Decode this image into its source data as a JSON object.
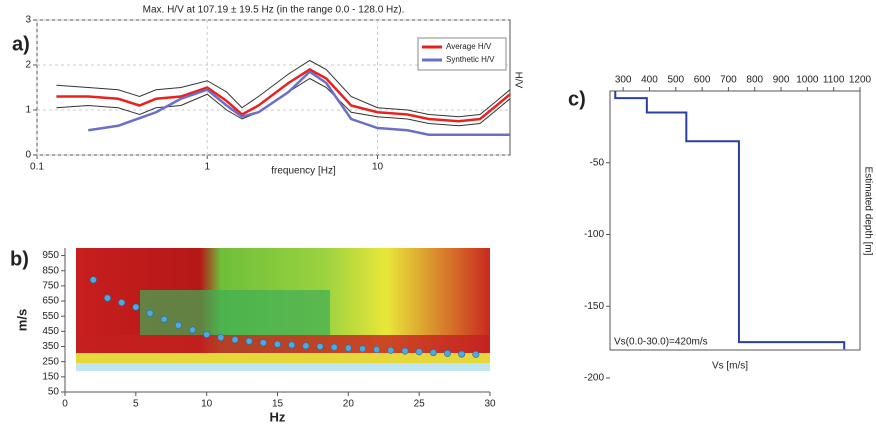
{
  "chart_data": [
    {
      "type": "line",
      "panel_label": "a)",
      "title": "Max. H/V at 107.19 ± 19.5 Hz (in the range 0.0 - 128.0 Hz).",
      "xlabel": "frequency [Hz]",
      "ylabel": "H/V",
      "xscale": "log",
      "xlim": [
        0.1,
        60
      ],
      "xticks": [
        0.1,
        1,
        10
      ],
      "ylim": [
        0,
        3
      ],
      "yticks": [
        0,
        1,
        2,
        3
      ],
      "grid": true,
      "legend": "upper right",
      "series": [
        {
          "color": "#333333",
          "x": [
            0.13,
            0.2,
            0.3,
            0.4,
            0.5,
            0.7,
            1.0,
            1.3,
            1.6,
            2.0,
            3.0,
            4.0,
            5.0,
            7.0,
            10,
            15,
            20,
            30,
            40,
            50,
            60
          ],
          "values": [
            1.55,
            1.5,
            1.45,
            1.3,
            1.45,
            1.5,
            1.65,
            1.4,
            1.05,
            1.3,
            1.8,
            2.1,
            1.9,
            1.3,
            1.05,
            1.0,
            0.9,
            0.85,
            0.9,
            1.2,
            1.45
          ]
        },
        {
          "color": "#333333",
          "x": [
            0.13,
            0.2,
            0.3,
            0.4,
            0.5,
            0.7,
            1.0,
            1.3,
            1.6,
            2.0,
            3.0,
            4.0,
            5.0,
            7.0,
            10,
            15,
            20,
            30,
            40,
            50,
            60
          ],
          "values": [
            1.05,
            1.1,
            1.05,
            0.9,
            1.05,
            1.1,
            1.35,
            1.0,
            0.8,
            0.95,
            1.4,
            1.7,
            1.5,
            0.95,
            0.85,
            0.8,
            0.7,
            0.65,
            0.7,
            1.0,
            1.25
          ]
        },
        {
          "name": "Average H/V",
          "color": "#e8231f",
          "x": [
            0.13,
            0.2,
            0.3,
            0.4,
            0.5,
            0.7,
            1.0,
            1.3,
            1.6,
            2.0,
            3.0,
            4.0,
            5.0,
            7.0,
            10,
            15,
            20,
            30,
            40,
            50,
            60
          ],
          "values": [
            1.3,
            1.3,
            1.25,
            1.1,
            1.25,
            1.3,
            1.5,
            1.2,
            0.9,
            1.1,
            1.6,
            1.9,
            1.7,
            1.1,
            0.95,
            0.9,
            0.8,
            0.75,
            0.8,
            1.1,
            1.35
          ]
        },
        {
          "name": "Synthetic H/V",
          "color": "#6a6fc8",
          "x": [
            0.2,
            0.3,
            0.5,
            0.7,
            1.0,
            1.3,
            1.6,
            2.0,
            3.0,
            4.0,
            5.0,
            7.0,
            10,
            15,
            20,
            30,
            60
          ],
          "values": [
            0.55,
            0.65,
            0.95,
            1.25,
            1.45,
            1.1,
            0.85,
            0.95,
            1.4,
            1.85,
            1.6,
            0.8,
            0.6,
            0.55,
            0.45,
            0.45,
            0.45
          ]
        }
      ]
    },
    {
      "type": "scatter",
      "panel_label": "b)",
      "xlabel": "Hz",
      "ylabel": "m/s",
      "xlim": [
        0,
        30
      ],
      "xticks": [
        0,
        5,
        10,
        15,
        20,
        25,
        30
      ],
      "ylim": [
        50,
        1000
      ],
      "yticks": [
        50,
        150,
        250,
        350,
        450,
        550,
        650,
        750,
        850,
        950
      ],
      "color": "#4fa8e0",
      "x": [
        2,
        3,
        4,
        5,
        6,
        7,
        8,
        9,
        10,
        11,
        12,
        13,
        14,
        15,
        16,
        17,
        18,
        19,
        20,
        21,
        22,
        23,
        24,
        25,
        26,
        27,
        28,
        29
      ],
      "values": [
        790,
        670,
        640,
        610,
        570,
        530,
        490,
        460,
        430,
        410,
        395,
        385,
        375,
        365,
        360,
        355,
        350,
        345,
        340,
        335,
        330,
        325,
        320,
        315,
        310,
        305,
        300,
        298
      ]
    },
    {
      "type": "step",
      "panel_label": "c)",
      "xlabel": "Vs [m/s]",
      "ylabel": "Estimated depth [m]",
      "annotation": "Vs(0.0-30.0)=420m/s",
      "color": "#2b3fa0",
      "xlim": [
        250,
        1200
      ],
      "xticks": [
        300,
        400,
        500,
        600,
        700,
        800,
        900,
        1000,
        1100,
        1200
      ],
      "ylim": [
        -200,
        0
      ],
      "yticks": [
        -50,
        -100,
        -150,
        -200
      ],
      "x": [
        270,
        270,
        390,
        390,
        540,
        540,
        740,
        740,
        1140,
        1140
      ],
      "values": [
        0,
        -5,
        -5,
        -15,
        -15,
        -35,
        -35,
        -175,
        -175,
        -180
      ]
    }
  ]
}
